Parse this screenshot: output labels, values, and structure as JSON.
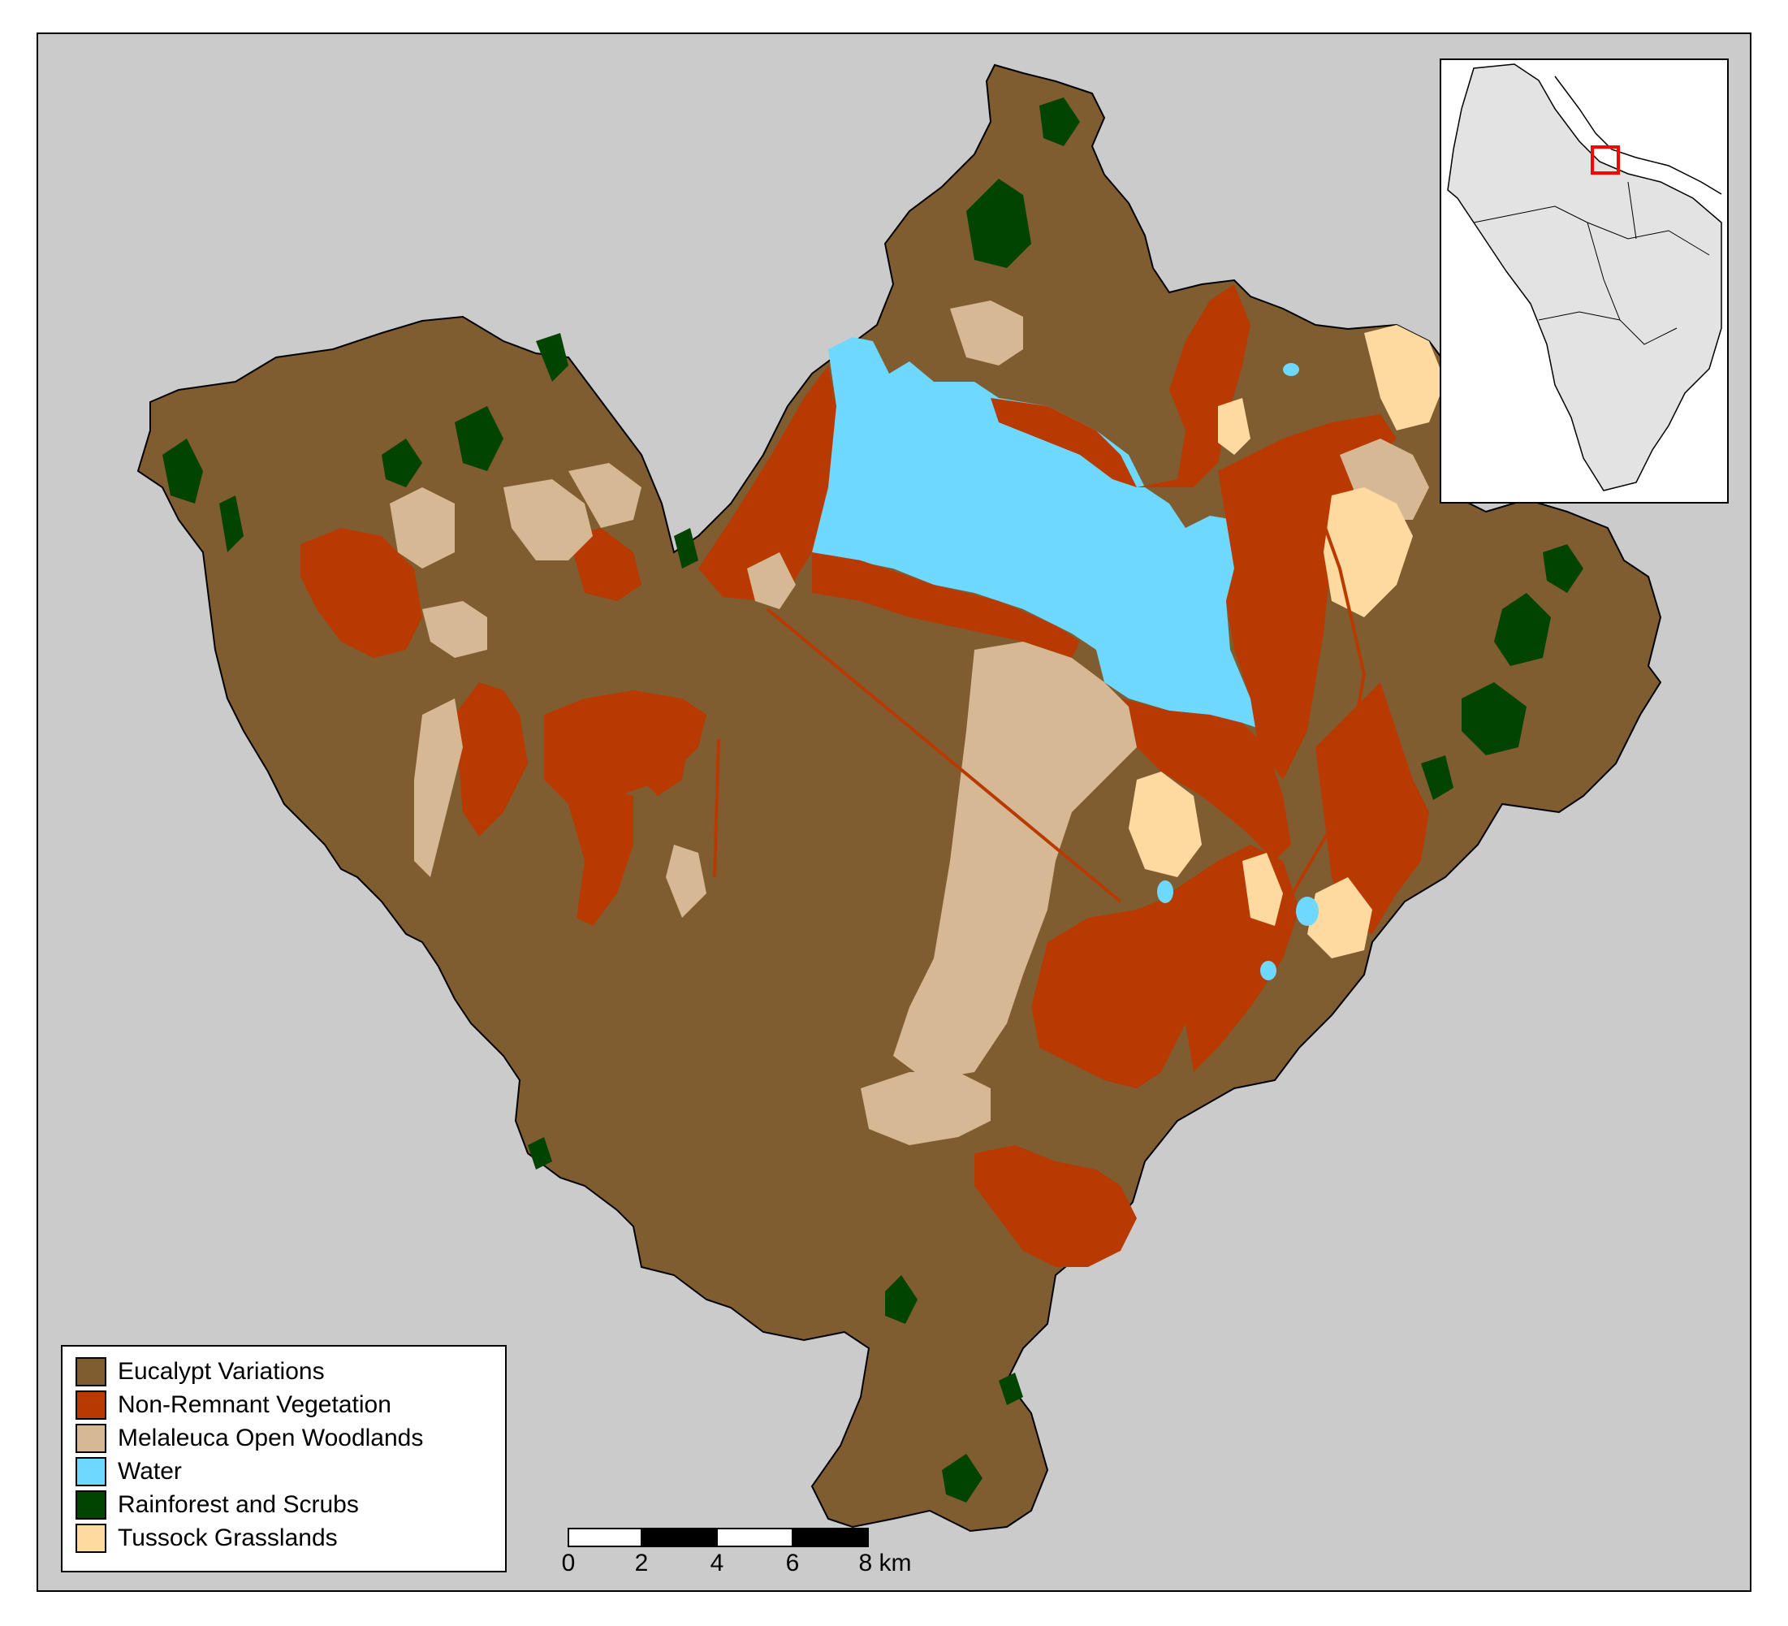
{
  "legend": {
    "items": [
      {
        "label": "Eucalypt Variations",
        "color": "#805c31"
      },
      {
        "label": "Non-Remnant Vegetation",
        "color": "#b93a00"
      },
      {
        "label": "Melaleuca Open Woodlands",
        "color": "#d6b894"
      },
      {
        "label": "Water",
        "color": "#6fd8ff"
      },
      {
        "label": "Rainforest and Scrubs",
        "color": "#004400"
      },
      {
        "label": "Tussock Grasslands",
        "color": "#fed9a0"
      }
    ]
  },
  "scalebar": {
    "ticks": [
      "0",
      "2",
      "4",
      "6",
      "8 km"
    ]
  },
  "colors": {
    "background": "#cbcbcb",
    "inset_region": "#e3e3e3",
    "inset_highlight": "#ff0000"
  },
  "icons": {
    "inset_locator": "red-square-locator-icon"
  }
}
